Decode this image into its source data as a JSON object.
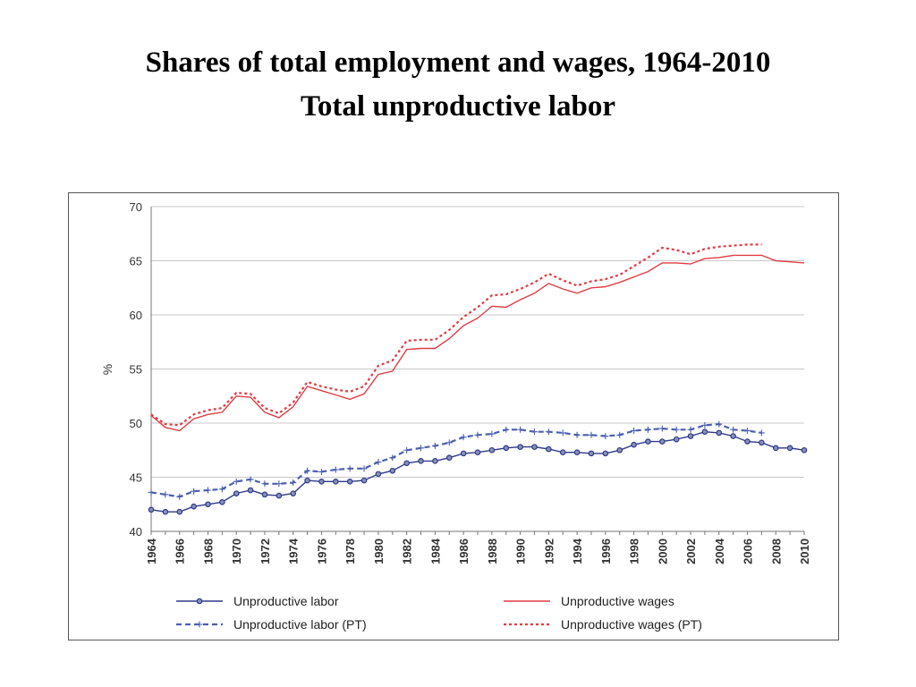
{
  "slide": {
    "title": "Shares of total employment and wages, 1964-2010",
    "subtitle": "Total unproductive labor"
  },
  "chart_data": {
    "type": "line",
    "ylabel": "%",
    "xlabel": "",
    "ylim": [
      40,
      70
    ],
    "yticks": [
      40,
      45,
      50,
      55,
      60,
      65,
      70
    ],
    "xlim": [
      1964,
      2010
    ],
    "xticks": [
      1964,
      1966,
      1968,
      1970,
      1972,
      1974,
      1976,
      1978,
      1980,
      1982,
      1984,
      1986,
      1988,
      1990,
      1992,
      1994,
      1996,
      1998,
      2000,
      2002,
      2004,
      2006,
      2008,
      2010
    ],
    "grid": "horizontal",
    "legend_position": "bottom",
    "x": [
      1964,
      1965,
      1966,
      1967,
      1968,
      1969,
      1970,
      1971,
      1972,
      1973,
      1974,
      1975,
      1976,
      1977,
      1978,
      1979,
      1980,
      1981,
      1982,
      1983,
      1984,
      1985,
      1986,
      1987,
      1988,
      1989,
      1990,
      1991,
      1992,
      1993,
      1994,
      1995,
      1996,
      1997,
      1998,
      1999,
      2000,
      2001,
      2002,
      2003,
      2004,
      2005,
      2006,
      2007,
      2008,
      2009,
      2010
    ],
    "series": [
      {
        "name": "Unproductive labor",
        "color": "#2e3a8c",
        "dash": "solid",
        "marker": "circle",
        "values": [
          42.0,
          41.8,
          41.8,
          42.3,
          42.5,
          42.7,
          43.5,
          43.8,
          43.4,
          43.3,
          43.5,
          44.7,
          44.6,
          44.6,
          44.6,
          44.7,
          45.3,
          45.6,
          46.3,
          46.5,
          46.5,
          46.8,
          47.2,
          47.3,
          47.5,
          47.7,
          47.8,
          47.8,
          47.6,
          47.3,
          47.3,
          47.2,
          47.2,
          47.5,
          48.0,
          48.3,
          48.3,
          48.5,
          48.8,
          49.2,
          49.1,
          48.8,
          48.3,
          48.2,
          47.7,
          47.7,
          47.5
        ]
      },
      {
        "name": "Unproductive wages",
        "color": "#e03c44",
        "dash": "solid",
        "marker": "none",
        "values": [
          50.7,
          49.6,
          49.3,
          50.4,
          50.8,
          51.0,
          52.5,
          52.4,
          51.0,
          50.5,
          51.5,
          53.4,
          53.0,
          52.6,
          52.2,
          52.7,
          54.5,
          54.8,
          56.8,
          56.9,
          56.9,
          57.8,
          59.0,
          59.7,
          60.8,
          60.7,
          61.4,
          62.0,
          62.9,
          62.4,
          62.0,
          62.5,
          62.6,
          63.0,
          63.5,
          64.0,
          64.8,
          64.8,
          64.7,
          65.2,
          65.3,
          65.5,
          65.5,
          65.5,
          65.0,
          64.9,
          64.8
        ]
      },
      {
        "name": "Unproductive labor (PT)",
        "color": "#4a5fb0",
        "dash": "dashed",
        "marker": "plus",
        "values": [
          43.6,
          43.4,
          43.2,
          43.7,
          43.8,
          43.9,
          44.6,
          44.8,
          44.4,
          44.4,
          44.5,
          45.6,
          45.5,
          45.7,
          45.8,
          45.8,
          46.4,
          46.8,
          47.5,
          47.7,
          47.9,
          48.2,
          48.7,
          48.9,
          49.0,
          49.4,
          49.4,
          49.2,
          49.2,
          49.1,
          48.9,
          48.9,
          48.8,
          48.9,
          49.3,
          49.4,
          49.5,
          49.4,
          49.4,
          49.8,
          49.9,
          49.4,
          49.3,
          49.1,
          null,
          null,
          null
        ]
      },
      {
        "name": "Unproductive wages (PT)",
        "color": "#e03c44",
        "dash": "dotted",
        "marker": "none",
        "values": [
          50.8,
          49.9,
          49.8,
          50.8,
          51.2,
          51.4,
          52.8,
          52.7,
          51.4,
          50.9,
          51.9,
          53.8,
          53.4,
          53.1,
          52.9,
          53.4,
          55.3,
          55.8,
          57.6,
          57.7,
          57.7,
          58.6,
          59.8,
          60.7,
          61.8,
          61.9,
          62.4,
          63.0,
          63.8,
          63.2,
          62.7,
          63.1,
          63.3,
          63.7,
          64.5,
          65.3,
          66.2,
          66.0,
          65.6,
          66.1,
          66.3,
          66.4,
          66.5,
          66.5,
          null,
          null,
          null
        ]
      }
    ]
  }
}
